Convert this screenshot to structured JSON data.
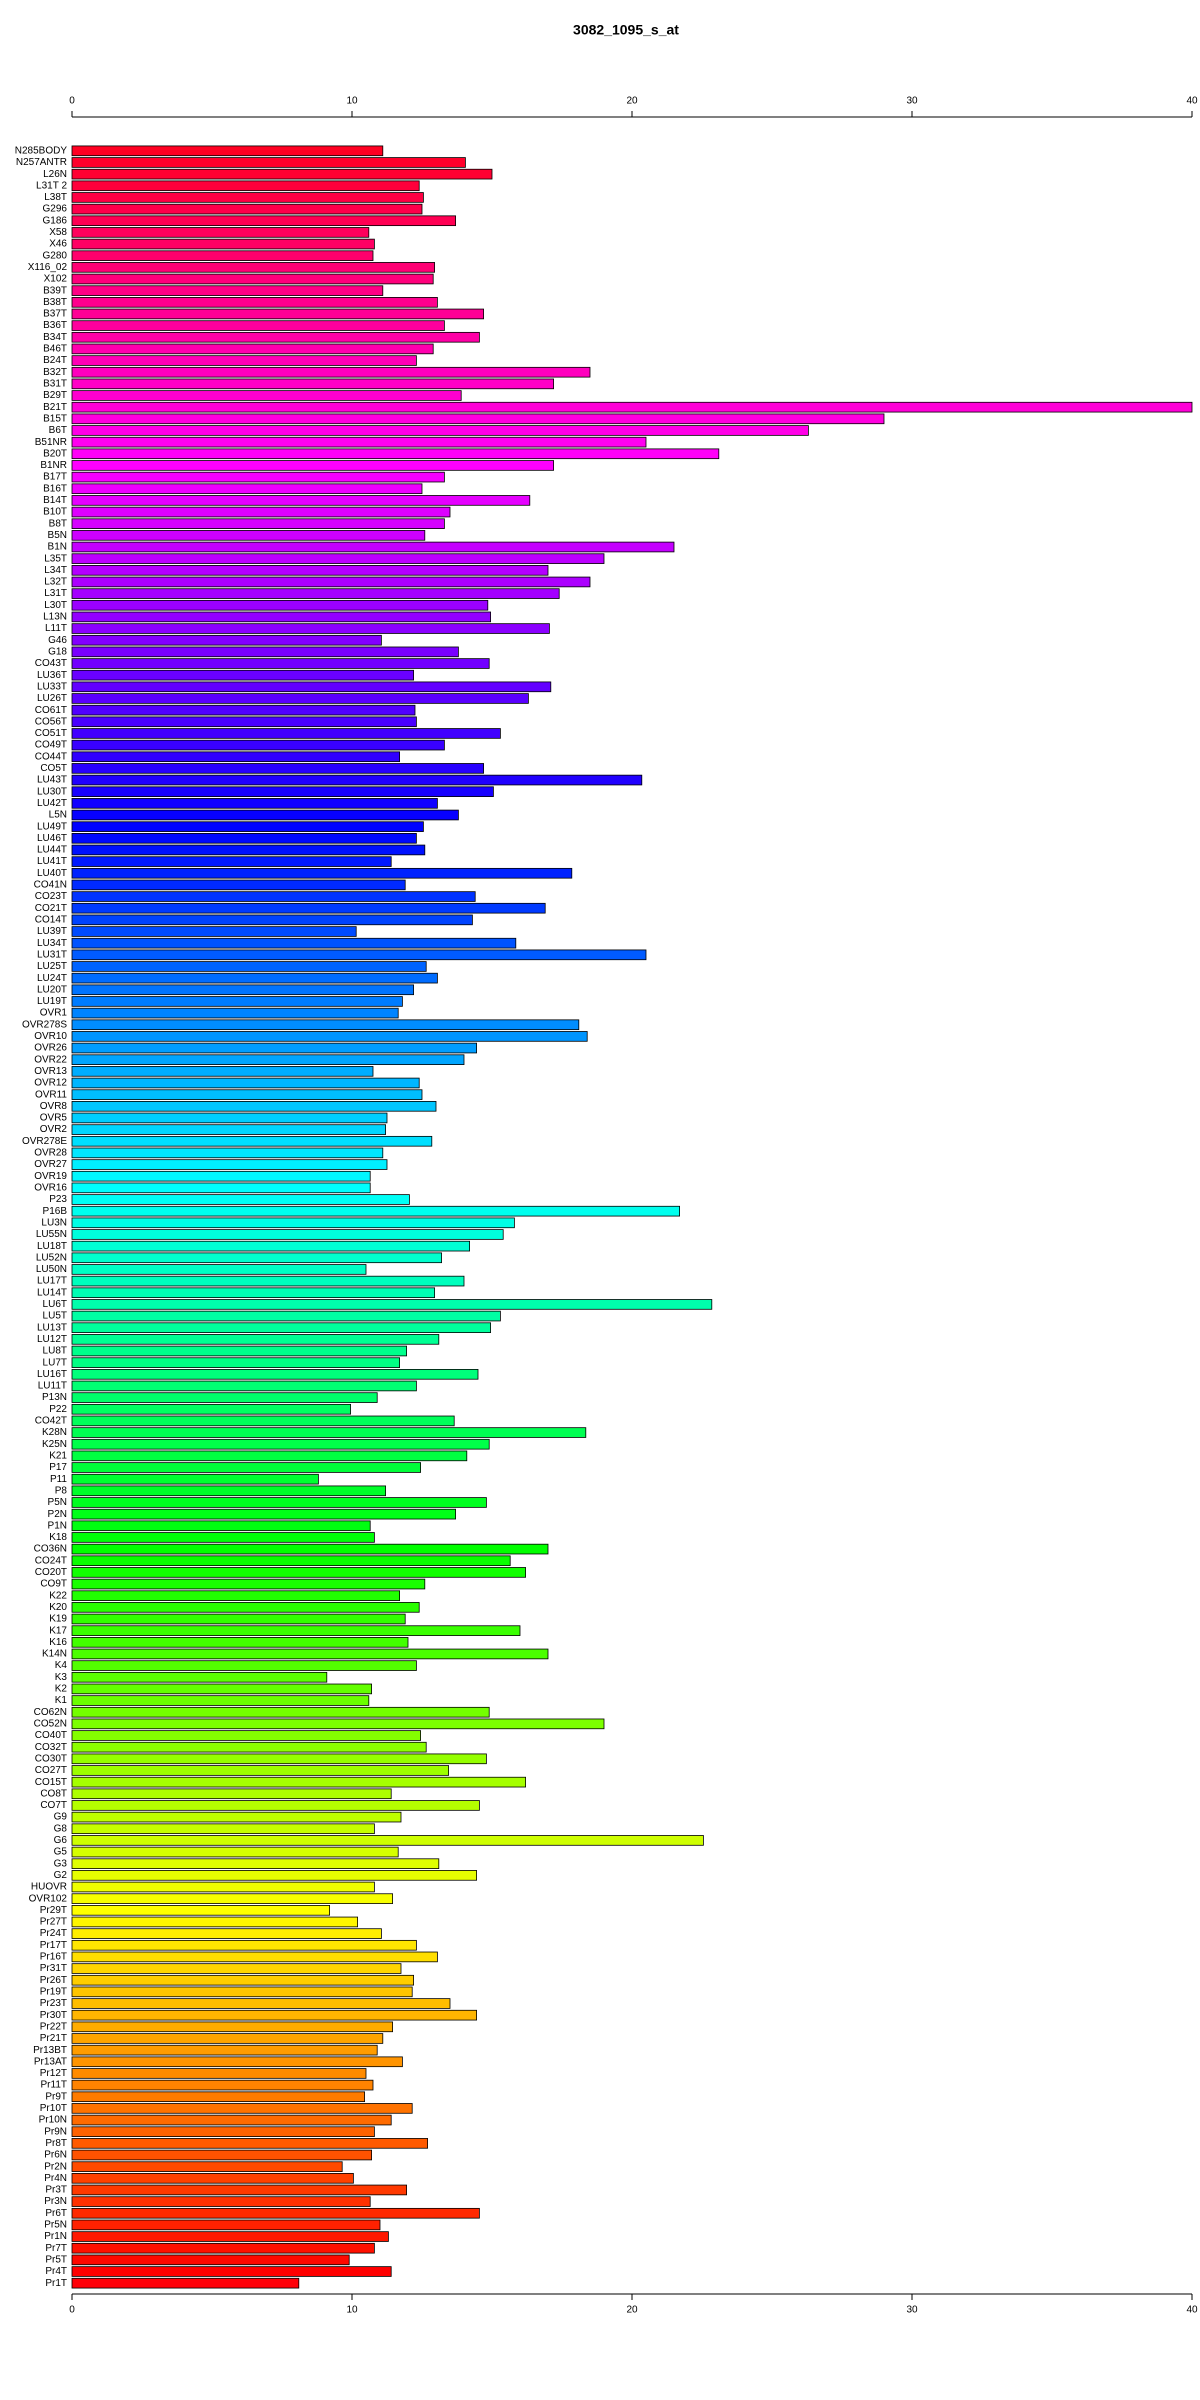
{
  "chart_data": {
    "type": "barh",
    "title": "3082_1095_s_at",
    "categories": [
      "N285BODY",
      "N257ANTR",
      "L26N",
      "L31T 2",
      "L38T",
      "G296",
      "G186",
      "X58",
      "X46",
      "G280",
      "X116_02",
      "X102",
      "B39T",
      "B38T",
      "B37T",
      "B36T",
      "B34T",
      "B46T",
      "B24T",
      "B32T",
      "B31T",
      "B29T",
      "B21T",
      "B15T",
      "B6T",
      "B51NR",
      "B20T",
      "B1NR",
      "B17T",
      "B16T",
      "B14T",
      "B10T",
      "B8T",
      "B5N",
      "B1N",
      "L35T",
      "L34T",
      "L32T",
      "L31T",
      "L30T",
      "L13N",
      "L11T",
      "G46",
      "G18",
      "CO43T",
      "LU36T",
      "LU33T",
      "LU26T",
      "CO61T",
      "CO56T",
      "CO51T",
      "CO49T",
      "CO44T",
      "CO5T",
      "LU43T",
      "LU30T",
      "LU42T",
      "L5N",
      "LU49T",
      "LU46T",
      "LU44T",
      "LU41T",
      "LU40T",
      "CO41N",
      "CO23T",
      "CO21T",
      "CO14T",
      "LU39T",
      "LU34T",
      "LU31T",
      "LU25T",
      "LU24T",
      "LU20T",
      "LU19T",
      "OVR1",
      "OVR278S",
      "OVR10",
      "OVR26",
      "OVR22",
      "OVR13",
      "OVR12",
      "OVR11",
      "OVR8",
      "OVR5",
      "OVR2",
      "OVR278E",
      "OVR28",
      "OVR27",
      "OVR19",
      "OVR16",
      "P23",
      "P16B",
      "LU3N",
      "LU55N",
      "LU18T",
      "LU52N",
      "LU50N",
      "LU17T",
      "LU14T",
      "LU6T",
      "LU5T",
      "LU13T",
      "LU12T",
      "LU8T",
      "LU7T",
      "LU16T",
      "LU11T",
      "P13N",
      "P22",
      "CO42T",
      "K28N",
      "K25N",
      "K21",
      "P17",
      "P11",
      "P8",
      "P5N",
      "P2N",
      "P1N",
      "K18",
      "CO36N",
      "CO24T",
      "CO20T",
      "CO9T",
      "K22",
      "K20",
      "K19",
      "K17",
      "K16",
      "K14N",
      "K4",
      "K3",
      "K2",
      "K1",
      "CO62N",
      "CO52N",
      "CO40T",
      "CO32T",
      "CO30T",
      "CO27T",
      "CO15T",
      "CO8T",
      "CO7T",
      "G9",
      "G8",
      "G6",
      "G5",
      "G3",
      "G2",
      "HUOVR",
      "OVR102",
      "Pr29T",
      "Pr27T",
      "Pr24T",
      "Pr17T",
      "Pr16T",
      "Pr31T",
      "Pr26T",
      "Pr19T",
      "Pr23T",
      "Pr30T",
      "Pr22T",
      "Pr21T",
      "Pr13BT",
      "Pr13AT",
      "Pr12T",
      "Pr11T",
      "Pr9T",
      "Pr10T",
      "Pr10N",
      "Pr9N",
      "Pr8T",
      "Pr6N",
      "Pr2N",
      "Pr4N",
      "Pr3T",
      "Pr3N",
      "Pr6T",
      "Pr5N",
      "Pr1N",
      "Pr7T",
      "Pr5T",
      "Pr4T",
      "Pr1T"
    ],
    "values": [
      11.1,
      14.05,
      15.0,
      12.4,
      12.55,
      12.5,
      13.7,
      10.6,
      10.8,
      10.75,
      12.95,
      12.9,
      11.1,
      13.05,
      14.7,
      13.3,
      14.55,
      12.9,
      12.3,
      18.5,
      17.2,
      13.9,
      40,
      29.0,
      26.3,
      20.5,
      23.1,
      17.2,
      13.3,
      12.5,
      16.35,
      13.5,
      13.3,
      12.6,
      21.5,
      19.0,
      17.0,
      18.5,
      17.4,
      14.85,
      14.95,
      17.05,
      11.05,
      13.8,
      14.9,
      12.2,
      17.1,
      16.3,
      12.25,
      12.3,
      15.3,
      13.3,
      11.7,
      14.7,
      20.35,
      15.05,
      13.05,
      13.8,
      12.55,
      12.3,
      12.6,
      11.4,
      17.85,
      11.9,
      14.4,
      16.9,
      14.3,
      10.15,
      15.85,
      20.5,
      12.65,
      13.05,
      12.2,
      11.8,
      11.65,
      18.1,
      18.4,
      14.45,
      14.0,
      10.75,
      12.4,
      12.5,
      13.0,
      11.25,
      11.2,
      12.85,
      11.1,
      11.25,
      10.65,
      10.65,
      12.05,
      21.7,
      15.8,
      15.4,
      14.2,
      13.2,
      10.5,
      14.0,
      12.95,
      22.85,
      15.3,
      14.95,
      13.1,
      11.95,
      11.7,
      14.5,
      12.3,
      10.9,
      9.95,
      13.65,
      18.35,
      14.9,
      14.1,
      12.45,
      8.8,
      11.2,
      14.8,
      13.7,
      10.65,
      10.8,
      17.0,
      15.65,
      16.2,
      12.6,
      11.7,
      12.4,
      11.9,
      16.0,
      12.0,
      17.0,
      12.3,
      9.1,
      10.7,
      10.6,
      14.9,
      19.0,
      12.45,
      12.65,
      14.8,
      13.45,
      16.2,
      11.4,
      14.55,
      11.75,
      10.8,
      22.55,
      11.65,
      13.1,
      14.45,
      10.8,
      11.45,
      9.2,
      10.2,
      11.05,
      12.3,
      13.05,
      11.75,
      12.2,
      12.15,
      13.5,
      14.45,
      11.45,
      11.1,
      10.9,
      11.8,
      10.5,
      10.75,
      10.45,
      12.15,
      11.4,
      10.8,
      12.7,
      10.7,
      9.65,
      10.05,
      11.95,
      10.65,
      14.55,
      11.0,
      11.3,
      10.8,
      9.9,
      11.4,
      8.1
    ],
    "color_scale": {
      "type": "rainbow",
      "hue_start": 352,
      "hue_end": -2
    },
    "xlim": [
      0,
      40
    ],
    "xticks": [
      0,
      10,
      20,
      30,
      40
    ]
  }
}
